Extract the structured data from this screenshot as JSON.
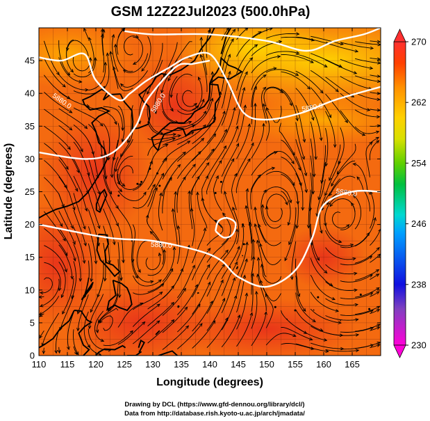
{
  "title": "GSM 12Z22Jul2023 (500.0hPa)",
  "xlabel": "Longitude (degrees)",
  "ylabel": "Latitude  (degrees)",
  "credits": {
    "line1": "Drawing by DCL (https://www.gfd-dennou.org/library/dcl/)",
    "line2": "Data from http://database.rish.kyoto-u.ac.jp/arch/jmadata/"
  },
  "chart_data": {
    "type": "heatmap",
    "xlim": [
      110,
      170
    ],
    "ylim": [
      0,
      50
    ],
    "x_ticks": [
      110,
      115,
      120,
      125,
      130,
      135,
      140,
      145,
      150,
      155,
      160,
      165
    ],
    "y_ticks": [
      0,
      5,
      10,
      15,
      20,
      25,
      30,
      35,
      40,
      45
    ],
    "grid": true,
    "overlays": [
      "streamlines",
      "coastlines",
      "geopotential-height-contours"
    ],
    "colorbar": {
      "min": 230,
      "max": 270,
      "ticks": [
        230,
        238,
        246,
        254,
        262,
        270
      ],
      "colors": [
        "#ff00d8",
        "#8040c0",
        "#1010e0",
        "#00a0ff",
        "#00d8d0",
        "#00c040",
        "#60d000",
        "#d8e000",
        "#ffd000",
        "#ff9000",
        "#ff4000",
        "#ff3030"
      ]
    },
    "contours": [
      {
        "label": "5880.0",
        "points": [
          [
            110,
            20
          ],
          [
            122,
            18
          ],
          [
            130,
            17.5
          ],
          [
            138,
            16
          ],
          [
            142,
            14.5
          ],
          [
            145,
            12
          ],
          [
            150,
            10.5
          ],
          [
            155,
            13
          ],
          [
            158,
            18
          ],
          [
            160,
            23
          ],
          [
            165,
            25
          ],
          [
            170,
            25
          ]
        ]
      },
      {
        "label": "5880.0",
        "points": [
          [
            110,
            31
          ],
          [
            118,
            30
          ],
          [
            123,
            31
          ],
          [
            127,
            35
          ],
          [
            129,
            39
          ],
          [
            134,
            44
          ],
          [
            137,
            44.5
          ],
          [
            140,
            45
          ]
        ]
      },
      {
        "label": "5880.0",
        "points": [
          [
            110,
            45.5
          ],
          [
            114,
            45
          ],
          [
            118,
            46
          ],
          [
            120,
            42
          ],
          [
            124,
            39
          ],
          [
            126,
            40
          ],
          [
            129,
            42
          ],
          [
            133,
            44
          ],
          [
            136,
            45.5
          ],
          [
            140,
            46
          ],
          [
            143,
            42
          ],
          [
            146,
            37
          ],
          [
            150,
            36
          ],
          [
            156,
            37
          ],
          [
            162,
            39
          ],
          [
            170,
            41
          ]
        ]
      },
      {
        "label": "5880.0",
        "points": [
          [
            125,
            49.5
          ],
          [
            130,
            49
          ],
          [
            140,
            49
          ],
          [
            150,
            48
          ],
          [
            157,
            46.5
          ],
          [
            162,
            48
          ],
          [
            167,
            49
          ],
          [
            170,
            50
          ]
        ]
      },
      {
        "label": "5880.0",
        "points": [
          [
            141,
            19
          ],
          [
            142.5,
            18
          ],
          [
            144,
            18.5
          ],
          [
            144.5,
            20.2
          ],
          [
            143,
            21
          ],
          [
            141.5,
            20.5
          ],
          [
            141,
            19
          ]
        ]
      }
    ],
    "contour_labels": [
      {
        "text": "5880.0",
        "lon": 114,
        "lat": 38.8,
        "angle": 35
      },
      {
        "text": "5880.0",
        "lon": 131,
        "lat": 38.5,
        "angle": -58
      },
      {
        "text": "5880.0",
        "lon": 158,
        "lat": 37.8,
        "angle": -10
      },
      {
        "text": "5880.0",
        "lon": 131.5,
        "lat": 16.8,
        "angle": 3
      },
      {
        "text": "5880.0",
        "lon": 164,
        "lat": 24.8,
        "angle": 8
      }
    ]
  }
}
